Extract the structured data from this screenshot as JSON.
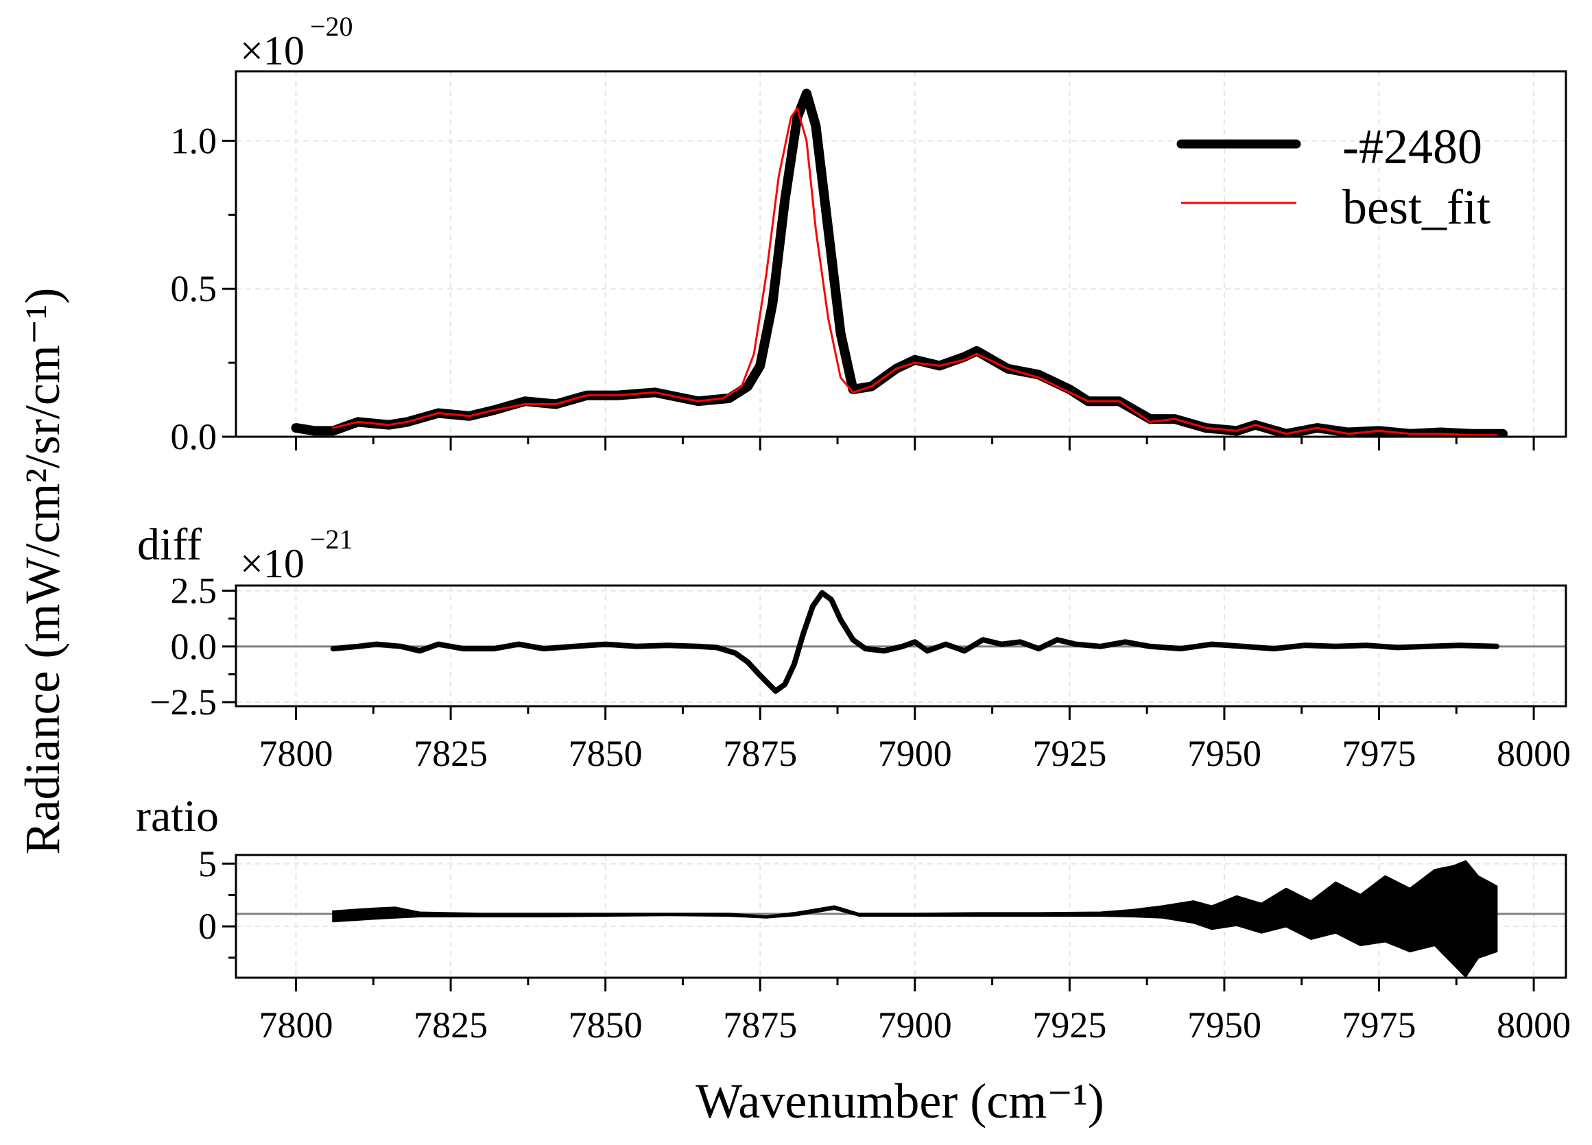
{
  "chart_data": [
    {
      "panel": "main",
      "type": "line",
      "ylabel": "Radiance (mW/cm²/sr/cm⁻¹)",
      "offset_text": {
        "base": "×10",
        "exponent": "−20"
      },
      "xlim": [
        7790.3,
        8005.2
      ],
      "ylim": [
        0,
        1.235
      ],
      "yticks": [
        0.0,
        0.5,
        1.0
      ],
      "ytick_labels": [
        "0.0",
        "0.5",
        "1.0"
      ],
      "xticks": [
        7800,
        7825,
        7850,
        7875,
        7900,
        7925,
        7950,
        7975,
        8000
      ],
      "grid": true,
      "legend_placement": "upper-right",
      "series": [
        {
          "name": "-#2480",
          "color": "#000000",
          "style": "thick",
          "x": [
            7800,
            7803,
            7806,
            7810,
            7815,
            7818,
            7823,
            7828,
            7832,
            7837,
            7842,
            7847,
            7852,
            7858,
            7865,
            7870,
            7873,
            7875,
            7877,
            7879,
            7881,
            7882.5,
            7884,
            7886,
            7888,
            7890,
            7893,
            7897,
            7900,
            7904,
            7908,
            7910,
            7915,
            7920,
            7925,
            7928,
            7933,
            7938,
            7942,
            7947,
            7952,
            7955,
            7960,
            7965,
            7970,
            7975,
            7980,
            7985,
            7990,
            7995
          ],
          "y": [
            0.03,
            0.02,
            0.02,
            0.05,
            0.04,
            0.05,
            0.08,
            0.07,
            0.09,
            0.12,
            0.11,
            0.14,
            0.14,
            0.15,
            0.12,
            0.13,
            0.17,
            0.24,
            0.45,
            0.8,
            1.08,
            1.16,
            1.05,
            0.7,
            0.35,
            0.16,
            0.17,
            0.23,
            0.26,
            0.24,
            0.27,
            0.29,
            0.23,
            0.21,
            0.16,
            0.12,
            0.12,
            0.06,
            0.06,
            0.03,
            0.02,
            0.04,
            0.01,
            0.03,
            0.015,
            0.02,
            0.01,
            0.015,
            0.01,
            0.01
          ]
        },
        {
          "name": "best_fit",
          "color": "#ff0000",
          "style": "thin",
          "x": [
            7806,
            7810,
            7815,
            7818,
            7823,
            7828,
            7832,
            7837,
            7842,
            7847,
            7852,
            7858,
            7865,
            7869,
            7872,
            7874,
            7876,
            7878,
            7880,
            7881,
            7882.5,
            7884,
            7886,
            7888,
            7890,
            7893,
            7897,
            7900,
            7904,
            7908,
            7910,
            7915,
            7920,
            7925,
            7928,
            7933,
            7938,
            7942,
            7947,
            7952,
            7955,
            7960,
            7965,
            7970,
            7975,
            7980,
            7985,
            7990,
            7994
          ],
          "y": [
            0.03,
            0.05,
            0.04,
            0.05,
            0.08,
            0.07,
            0.09,
            0.11,
            0.11,
            0.14,
            0.14,
            0.15,
            0.12,
            0.13,
            0.17,
            0.28,
            0.55,
            0.88,
            1.08,
            1.11,
            1.0,
            0.7,
            0.4,
            0.2,
            0.15,
            0.17,
            0.23,
            0.25,
            0.24,
            0.26,
            0.28,
            0.23,
            0.2,
            0.15,
            0.12,
            0.12,
            0.05,
            0.06,
            0.03,
            0.02,
            0.04,
            0.01,
            0.03,
            0.01,
            0.02,
            0.01,
            0.01,
            0.005,
            0.005
          ]
        }
      ]
    },
    {
      "panel": "diff",
      "type": "line",
      "title": "diff",
      "offset_text": {
        "base": "×10",
        "exponent": "−21"
      },
      "xlim": [
        7790.3,
        8005.2
      ],
      "ylim": [
        -2.68,
        2.73
      ],
      "yticks": [
        -2.5,
        0.0,
        2.5
      ],
      "ytick_labels": [
        "−2.5",
        "0.0",
        "2.5"
      ],
      "xticks": [
        7800,
        7825,
        7850,
        7875,
        7900,
        7925,
        7950,
        7975,
        8000
      ],
      "xtick_labels": [
        "7800",
        "7825",
        "7850",
        "7875",
        "7900",
        "7925",
        "7950",
        "7975",
        "8000"
      ],
      "reference_line": 0,
      "grid": true,
      "x": [
        7806,
        7810,
        7813,
        7817,
        7820,
        7823,
        7827,
        7832,
        7836,
        7840,
        7845,
        7850,
        7855,
        7860,
        7865,
        7868,
        7871,
        7873,
        7875,
        7877.5,
        7879,
        7880.5,
        7882,
        7883.5,
        7885,
        7886.5,
        7888,
        7890,
        7892,
        7895,
        7898,
        7900,
        7902,
        7905,
        7908,
        7911,
        7914,
        7917,
        7920,
        7923,
        7926,
        7930,
        7934,
        7938,
        7943,
        7948,
        7953,
        7958,
        7963,
        7968,
        7973,
        7978,
        7983,
        7988,
        7994
      ],
      "y": [
        -0.1,
        0.0,
        0.1,
        0.0,
        -0.2,
        0.1,
        -0.1,
        -0.1,
        0.1,
        -0.1,
        0.0,
        0.1,
        0.0,
        0.05,
        0.0,
        -0.05,
        -0.3,
        -0.7,
        -1.3,
        -2.0,
        -1.7,
        -0.8,
        0.6,
        1.8,
        2.4,
        2.1,
        1.2,
        0.3,
        -0.1,
        -0.2,
        0.0,
        0.2,
        -0.2,
        0.1,
        -0.2,
        0.3,
        0.1,
        0.2,
        -0.1,
        0.3,
        0.1,
        0.0,
        0.2,
        0.0,
        -0.1,
        0.1,
        0.0,
        -0.1,
        0.05,
        0.0,
        0.05,
        -0.05,
        0.0,
        0.05,
        0.0
      ]
    },
    {
      "panel": "ratio",
      "type": "line",
      "title": "ratio",
      "xlabel": "Wavenumber (cm⁻¹)",
      "xlim": [
        7790.3,
        8005.2
      ],
      "ylim": [
        -4.1,
        5.7
      ],
      "yticks": [
        0,
        5
      ],
      "ytick_labels": [
        "0",
        "5"
      ],
      "xticks": [
        7800,
        7825,
        7850,
        7875,
        7900,
        7925,
        7950,
        7975,
        8000
      ],
      "xtick_labels": [
        "7800",
        "7825",
        "7850",
        "7875",
        "7900",
        "7925",
        "7950",
        "7975",
        "8000"
      ],
      "reference_line": 1,
      "grid": true,
      "x": [
        7806,
        7812,
        7816,
        7820,
        7830,
        7840,
        7850,
        7860,
        7870,
        7876,
        7881,
        7887,
        7891,
        7900,
        7910,
        7920,
        7930,
        7935,
        7940,
        7945,
        7948,
        7952,
        7956,
        7960,
        7964,
        7968,
        7972,
        7976,
        7980,
        7984,
        7987,
        7989,
        7991,
        7994
      ],
      "lo": [
        0.4,
        0.6,
        0.7,
        0.8,
        0.8,
        0.8,
        0.85,
        0.9,
        0.85,
        0.7,
        0.9,
        1.4,
        0.85,
        0.85,
        0.85,
        0.85,
        0.85,
        0.8,
        0.7,
        0.3,
        -0.2,
        0.1,
        -0.5,
        0.0,
        -1.0,
        -0.5,
        -1.5,
        -1.2,
        -2.0,
        -1.5,
        -3.0,
        -4.0,
        -2.5,
        -2.0
      ],
      "hi": [
        1.2,
        1.4,
        1.5,
        1.1,
        1.0,
        1.0,
        1.0,
        1.0,
        1.0,
        0.8,
        1.1,
        1.6,
        1.0,
        1.0,
        1.05,
        1.05,
        1.1,
        1.3,
        1.6,
        2.0,
        1.6,
        2.4,
        1.8,
        3.0,
        2.0,
        3.5,
        2.5,
        4.0,
        3.0,
        4.5,
        4.8,
        5.2,
        4.0,
        3.2
      ]
    }
  ]
}
